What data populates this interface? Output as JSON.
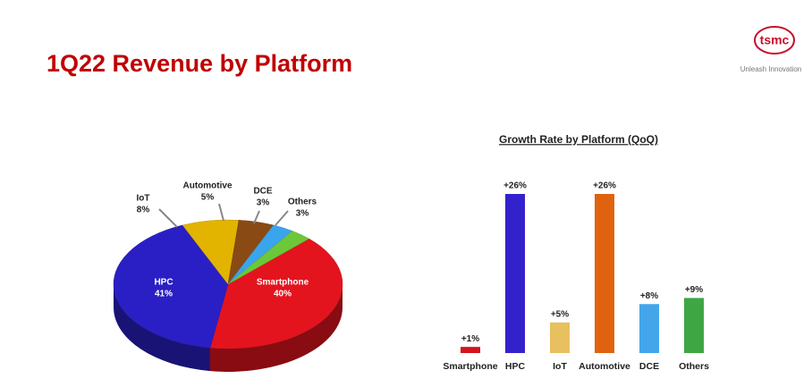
{
  "header": {
    "title": "1Q22 Revenue by Platform",
    "logo": "tsmc",
    "tagline": "Unleash Innovation"
  },
  "chart_data": [
    {
      "type": "pie",
      "categories": [
        "Smartphone",
        "HPC",
        "IoT",
        "Automotive",
        "DCE",
        "Others"
      ],
      "values": [
        40,
        41,
        8,
        5,
        3,
        3
      ],
      "value_labels": [
        "40%",
        "41%",
        "8%",
        "5%",
        "3%",
        "3%"
      ],
      "colors": [
        "#e3141e",
        "#2a1fc4",
        "#e2b400",
        "#8a4a14",
        "#3aa4ec",
        "#6cc838"
      ]
    },
    {
      "type": "bar",
      "title": "Growth Rate by Platform (QoQ)",
      "categories": [
        "Smartphone",
        "HPC",
        "IoT",
        "Automotive",
        "DCE",
        "Others"
      ],
      "values": [
        1,
        26,
        5,
        26,
        8,
        9
      ],
      "value_labels": [
        "+1%",
        "+26%",
        "+5%",
        "+26%",
        "+8%",
        "+9%"
      ],
      "colors": [
        "#d4141c",
        "#3322cc",
        "#e8c060",
        "#e0620e",
        "#44a6ea",
        "#3fa644"
      ]
    }
  ]
}
